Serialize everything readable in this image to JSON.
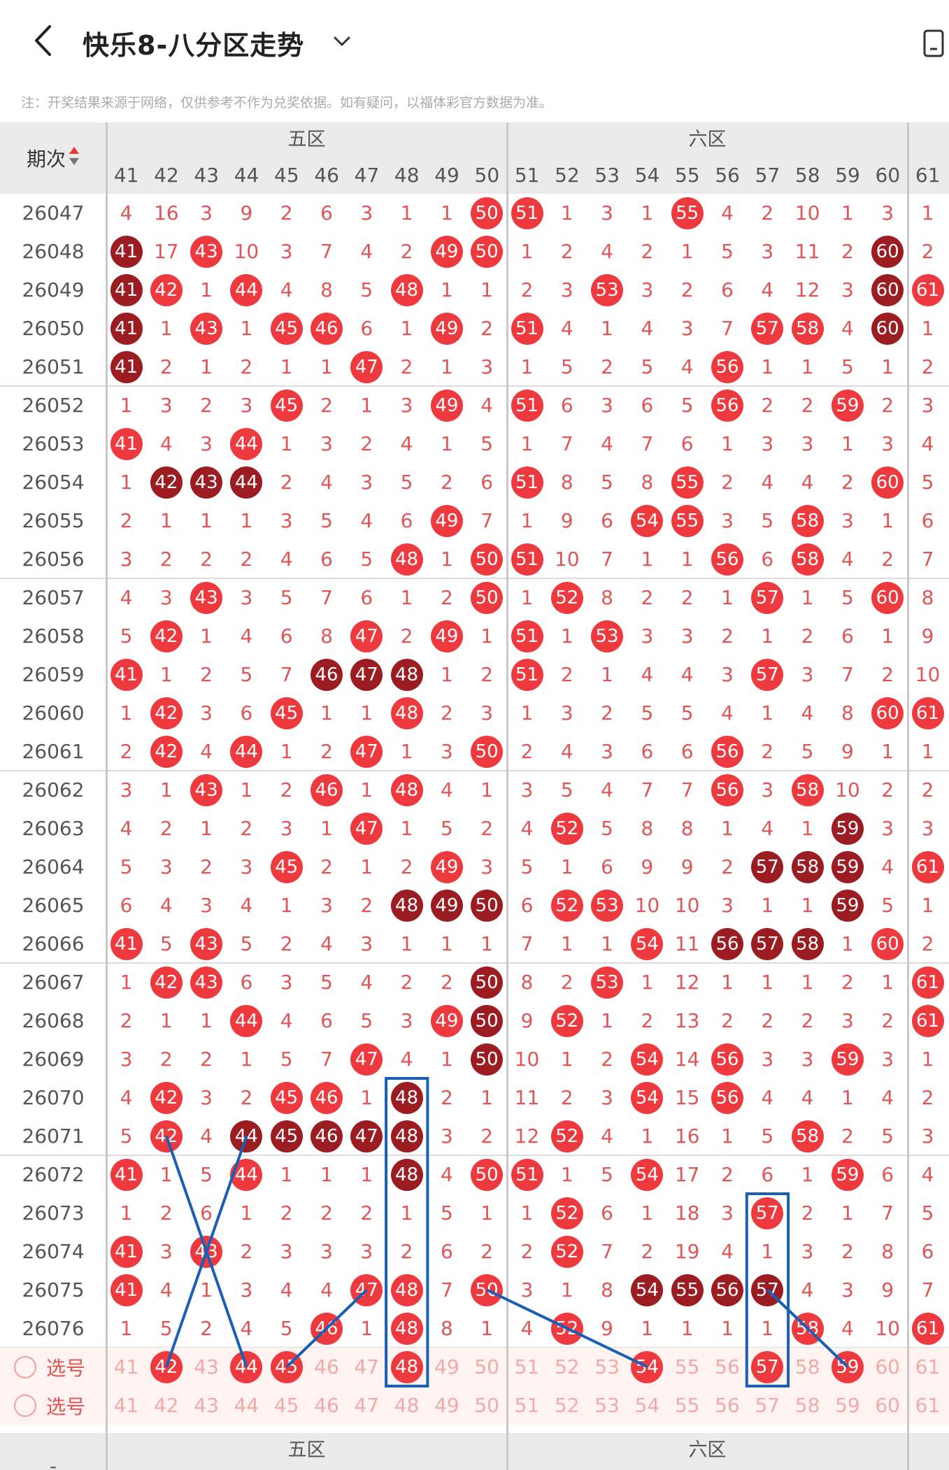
{
  "header": {
    "title": "快乐8-八分区走势",
    "note": "注：开奖结果来源于网络，仅供参考不作为兑奖依据。如有疑问，以福体彩官方数据为准。"
  },
  "table": {
    "period_header": "期次",
    "sort_icon": "sort-updown-icon",
    "zones": [
      "五区",
      "六区"
    ],
    "numbers": [
      41,
      42,
      43,
      44,
      45,
      46,
      47,
      48,
      49,
      50,
      51,
      52,
      53,
      54,
      55,
      56,
      57,
      58,
      59,
      60,
      61
    ],
    "select_label": "选号",
    "footer_dash": "-",
    "rows": [
      {
        "period": "26047",
        "cells": [
          "4",
          "16",
          "3",
          "9",
          "2",
          "6",
          "3",
          "1",
          "1",
          "B50",
          "B51",
          "1",
          "3",
          "1",
          "B55",
          "4",
          "2",
          "10",
          "1",
          "3",
          "1"
        ]
      },
      {
        "period": "26048",
        "cells": [
          "D41",
          "17",
          "B43",
          "10",
          "3",
          "7",
          "4",
          "2",
          "B49",
          "B50",
          "1",
          "2",
          "4",
          "2",
          "1",
          "5",
          "3",
          "11",
          "2",
          "D60",
          "2"
        ]
      },
      {
        "period": "26049",
        "cells": [
          "D41",
          "B42",
          "1",
          "B44",
          "4",
          "8",
          "5",
          "B48",
          "1",
          "1",
          "2",
          "3",
          "B53",
          "3",
          "2",
          "6",
          "4",
          "12",
          "3",
          "D60",
          "B61"
        ]
      },
      {
        "period": "26050",
        "cells": [
          "D41",
          "1",
          "B43",
          "1",
          "B45",
          "B46",
          "6",
          "1",
          "B49",
          "2",
          "B51",
          "4",
          "1",
          "4",
          "3",
          "7",
          "B57",
          "B58",
          "4",
          "D60",
          "1"
        ]
      },
      {
        "period": "26051",
        "cells": [
          "D41",
          "2",
          "1",
          "2",
          "1",
          "1",
          "B47",
          "2",
          "1",
          "3",
          "1",
          "5",
          "2",
          "5",
          "4",
          "B56",
          "1",
          "1",
          "5",
          "1",
          "2"
        ]
      },
      {
        "period": "26052",
        "cells": [
          "1",
          "3",
          "2",
          "3",
          "B45",
          "2",
          "1",
          "3",
          "B49",
          "4",
          "B51",
          "6",
          "3",
          "6",
          "5",
          "B56",
          "2",
          "2",
          "B59",
          "2",
          "3"
        ]
      },
      {
        "period": "26053",
        "cells": [
          "B41",
          "4",
          "3",
          "B44",
          "1",
          "3",
          "2",
          "4",
          "1",
          "5",
          "1",
          "7",
          "4",
          "7",
          "6",
          "1",
          "3",
          "3",
          "1",
          "3",
          "4"
        ]
      },
      {
        "period": "26054",
        "cells": [
          "1",
          "D42",
          "D43",
          "D44",
          "2",
          "4",
          "3",
          "5",
          "2",
          "6",
          "B51",
          "8",
          "5",
          "8",
          "B55",
          "2",
          "4",
          "4",
          "2",
          "B60",
          "5"
        ]
      },
      {
        "period": "26055",
        "cells": [
          "2",
          "1",
          "1",
          "1",
          "3",
          "5",
          "4",
          "6",
          "B49",
          "7",
          "1",
          "9",
          "6",
          "B54",
          "B55",
          "3",
          "5",
          "B58",
          "3",
          "1",
          "6"
        ]
      },
      {
        "period": "26056",
        "cells": [
          "3",
          "2",
          "2",
          "2",
          "4",
          "6",
          "5",
          "B48",
          "1",
          "B50",
          "B51",
          "10",
          "7",
          "1",
          "1",
          "B56",
          "6",
          "B58",
          "4",
          "2",
          "7"
        ]
      },
      {
        "period": "26057",
        "cells": [
          "4",
          "3",
          "B43",
          "3",
          "5",
          "7",
          "6",
          "1",
          "2",
          "B50",
          "1",
          "B52",
          "8",
          "2",
          "2",
          "1",
          "B57",
          "1",
          "5",
          "B60",
          "8"
        ]
      },
      {
        "period": "26058",
        "cells": [
          "5",
          "B42",
          "1",
          "4",
          "6",
          "8",
          "B47",
          "2",
          "B49",
          "1",
          "B51",
          "1",
          "B53",
          "3",
          "3",
          "2",
          "1",
          "2",
          "6",
          "1",
          "9"
        ]
      },
      {
        "period": "26059",
        "cells": [
          "B41",
          "1",
          "2",
          "5",
          "7",
          "D46",
          "D47",
          "D48",
          "1",
          "2",
          "B51",
          "2",
          "1",
          "4",
          "4",
          "3",
          "B57",
          "3",
          "7",
          "2",
          "10"
        ]
      },
      {
        "period": "26060",
        "cells": [
          "1",
          "B42",
          "3",
          "6",
          "B45",
          "1",
          "1",
          "B48",
          "2",
          "3",
          "1",
          "3",
          "2",
          "5",
          "5",
          "4",
          "1",
          "4",
          "8",
          "B60",
          "B61"
        ]
      },
      {
        "period": "26061",
        "cells": [
          "2",
          "B42",
          "4",
          "B44",
          "1",
          "2",
          "B47",
          "1",
          "3",
          "B50",
          "2",
          "4",
          "3",
          "6",
          "6",
          "B56",
          "2",
          "5",
          "9",
          "1",
          "1"
        ]
      },
      {
        "period": "26062",
        "cells": [
          "3",
          "1",
          "B43",
          "1",
          "2",
          "B46",
          "1",
          "B48",
          "4",
          "1",
          "3",
          "5",
          "4",
          "7",
          "7",
          "B56",
          "3",
          "B58",
          "10",
          "2",
          "2"
        ]
      },
      {
        "period": "26063",
        "cells": [
          "4",
          "2",
          "1",
          "2",
          "3",
          "1",
          "B47",
          "1",
          "5",
          "2",
          "4",
          "B52",
          "5",
          "8",
          "8",
          "1",
          "4",
          "1",
          "D59",
          "3",
          "3"
        ]
      },
      {
        "period": "26064",
        "cells": [
          "5",
          "3",
          "2",
          "3",
          "B45",
          "2",
          "1",
          "2",
          "B49",
          "3",
          "5",
          "1",
          "6",
          "9",
          "9",
          "2",
          "D57",
          "D58",
          "D59",
          "4",
          "B61"
        ]
      },
      {
        "period": "26065",
        "cells": [
          "6",
          "4",
          "3",
          "4",
          "1",
          "3",
          "2",
          "D48",
          "D49",
          "D50",
          "6",
          "B52",
          "B53",
          "10",
          "10",
          "3",
          "1",
          "1",
          "D59",
          "5",
          "1"
        ]
      },
      {
        "period": "26066",
        "cells": [
          "B41",
          "5",
          "B43",
          "5",
          "2",
          "4",
          "3",
          "1",
          "1",
          "1",
          "7",
          "1",
          "1",
          "B54",
          "11",
          "D56",
          "D57",
          "D58",
          "1",
          "B60",
          "2"
        ]
      },
      {
        "period": "26067",
        "cells": [
          "1",
          "B42",
          "B43",
          "6",
          "3",
          "5",
          "4",
          "2",
          "2",
          "D50",
          "8",
          "2",
          "B53",
          "1",
          "12",
          "1",
          "1",
          "1",
          "2",
          "1",
          "B61"
        ]
      },
      {
        "period": "26068",
        "cells": [
          "2",
          "1",
          "1",
          "B44",
          "4",
          "6",
          "5",
          "3",
          "B49",
          "D50",
          "9",
          "B52",
          "1",
          "2",
          "13",
          "2",
          "2",
          "2",
          "3",
          "2",
          "B61"
        ]
      },
      {
        "period": "26069",
        "cells": [
          "3",
          "2",
          "2",
          "1",
          "5",
          "7",
          "B47",
          "4",
          "1",
          "D50",
          "10",
          "1",
          "2",
          "B54",
          "14",
          "B56",
          "3",
          "3",
          "B59",
          "3",
          "1"
        ]
      },
      {
        "period": "26070",
        "cells": [
          "4",
          "B42",
          "3",
          "2",
          "B45",
          "B46",
          "1",
          "D48",
          "2",
          "1",
          "11",
          "2",
          "3",
          "B54",
          "15",
          "B56",
          "4",
          "4",
          "1",
          "4",
          "2"
        ]
      },
      {
        "period": "26071",
        "cells": [
          "5",
          "B42",
          "4",
          "D44",
          "D45",
          "D46",
          "D47",
          "D48",
          "3",
          "2",
          "12",
          "B52",
          "4",
          "1",
          "16",
          "1",
          "5",
          "B58",
          "2",
          "5",
          "3"
        ]
      },
      {
        "period": "26072",
        "cells": [
          "B41",
          "1",
          "5",
          "B44",
          "1",
          "1",
          "1",
          "D48",
          "4",
          "B50",
          "B51",
          "1",
          "5",
          "B54",
          "17",
          "2",
          "6",
          "1",
          "B59",
          "6",
          "4"
        ]
      },
      {
        "period": "26073",
        "cells": [
          "1",
          "2",
          "6",
          "1",
          "2",
          "2",
          "2",
          "1",
          "5",
          "1",
          "1",
          "B52",
          "6",
          "1",
          "18",
          "3",
          "B57",
          "2",
          "1",
          "7",
          "5"
        ]
      },
      {
        "period": "26074",
        "cells": [
          "B41",
          "3",
          "B43",
          "2",
          "3",
          "3",
          "3",
          "2",
          "6",
          "2",
          "2",
          "B52",
          "7",
          "2",
          "19",
          "4",
          "1",
          "3",
          "2",
          "8",
          "6"
        ]
      },
      {
        "period": "26075",
        "cells": [
          "B41",
          "4",
          "1",
          "3",
          "4",
          "4",
          "B47",
          "B48",
          "7",
          "B50",
          "3",
          "1",
          "8",
          "D54",
          "D55",
          "D56",
          "D57",
          "4",
          "3",
          "9",
          "7"
        ]
      },
      {
        "period": "26076",
        "cells": [
          "1",
          "5",
          "2",
          "4",
          "5",
          "B46",
          "1",
          "B48",
          "8",
          "1",
          "4",
          "B52",
          "9",
          "1",
          "1",
          "1",
          "1",
          "B58",
          "4",
          "10",
          "B61"
        ]
      }
    ],
    "selection_rows": [
      [
        "41",
        "B42",
        "43",
        "B44",
        "B45",
        "46",
        "47",
        "B48",
        "49",
        "50",
        "51",
        "52",
        "53",
        "B54",
        "55",
        "56",
        "B57",
        "58",
        "B59",
        "60",
        "61"
      ],
      [
        "41",
        "42",
        "43",
        "44",
        "45",
        "46",
        "47",
        "48",
        "49",
        "50",
        "51",
        "52",
        "53",
        "54",
        "55",
        "56",
        "57",
        "58",
        "59",
        "60",
        "61"
      ]
    ]
  },
  "colors": {
    "red_ball": "#ee3a3e",
    "dark_ball": "#9b1d22",
    "miss_text": "#e05555",
    "annotation": "#1a5fb4"
  }
}
